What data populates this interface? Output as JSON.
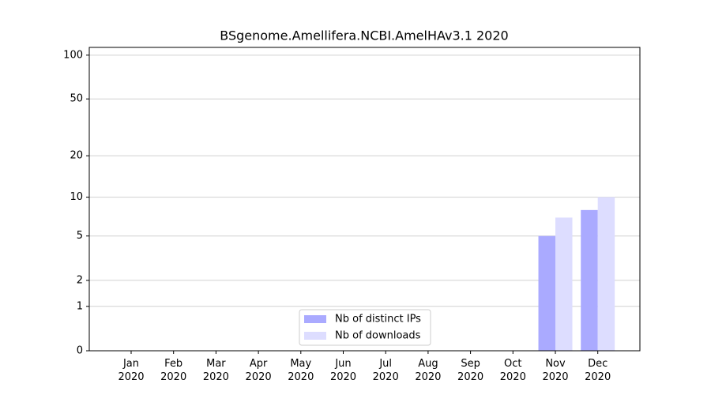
{
  "chart_data": {
    "type": "bar",
    "title": "BSgenome.Amellifera.NCBI.AmelHAv3.1 2020",
    "categories": [
      "Jan\n2020",
      "Feb\n2020",
      "Mar\n2020",
      "Apr\n2020",
      "May\n2020",
      "Jun\n2020",
      "Jul\n2020",
      "Aug\n2020",
      "Sep\n2020",
      "Oct\n2020",
      "Nov\n2020",
      "Dec\n2020"
    ],
    "series": [
      {
        "name": "Nb of distinct IPs",
        "color": "#aaaaff",
        "values": [
          0,
          0,
          0,
          0,
          0,
          0,
          0,
          0,
          0,
          0,
          5,
          8
        ]
      },
      {
        "name": "Nb of downloads",
        "color": "#ddddff",
        "values": [
          0,
          0,
          0,
          0,
          0,
          0,
          0,
          0,
          0,
          0,
          7,
          10
        ]
      }
    ],
    "yscale": "symlog",
    "ylim": [
      0,
      113
    ],
    "yticks": [
      0,
      1,
      2,
      5,
      10,
      20,
      50,
      100
    ],
    "grid": true,
    "legend": "lower center"
  }
}
